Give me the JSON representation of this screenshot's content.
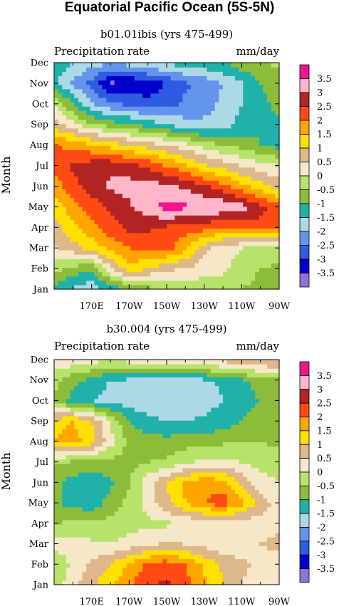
{
  "title": "Equatorial Pacific Ocean (5S-5N)",
  "contour_levels": [
    "3.5",
    "3",
    "2.5",
    "2",
    "1.5",
    "1",
    "0.5",
    "0",
    "-0.5",
    "-1",
    "-1.5",
    "-2",
    "-2.5",
    "-3",
    "-3.5"
  ],
  "colors": {
    "3.5": "#f2138f",
    "3": "#ffb6c9",
    "2.5": "#b22424",
    "2": "#ff4a14",
    "1.5": "#ffa500",
    "1": "#ffe000",
    "0.5": "#dcb88a",
    "0": "#f5e8c9",
    "-0.5": "#b8e36a",
    "-1": "#8cbd3a",
    "-1.5": "#20b2aa",
    "-2": "#add8e6",
    "-2.5": "#6495ed",
    "-3": "#2e5ce0",
    "-3.5": "#0000cd",
    "below": "#9370db"
  },
  "chart_data": [
    {
      "type": "heatmap",
      "subtitle": "b01.01ibis (yrs 475-499)",
      "left_string": "Precipitation rate",
      "right_string": "mm/day",
      "ylabel": "Month",
      "x_ticks": [
        "170E",
        "170W",
        "150W",
        "130W",
        "110W",
        "90W"
      ],
      "y_ticks": [
        "Jan",
        "Feb",
        "Mar",
        "Apr",
        "May",
        "Jun",
        "Jul",
        "Aug",
        "Sep",
        "Oct",
        "Nov",
        "Dec"
      ],
      "x_range": [
        "150E",
        "90W"
      ],
      "y_range": [
        "Jan",
        "Dec"
      ],
      "columns": [
        "150E",
        "160E",
        "170E",
        "180",
        "170W",
        "160W",
        "150W",
        "140W",
        "130W",
        "120W",
        "110W",
        "100W",
        "90W"
      ],
      "values": [
        [
          -1.2,
          -1.6,
          -1.8,
          -1.4,
          -1.0,
          -0.7,
          -0.5,
          -0.4,
          -0.3,
          -0.3,
          -0.5,
          -0.7,
          -0.9
        ],
        [
          -0.3,
          -0.7,
          -1.0,
          0.4,
          1.3,
          1.0,
          0.6,
          0.5,
          0.2,
          0.1,
          -0.2,
          -0.5,
          -0.6
        ],
        [
          0.4,
          0.8,
          1.2,
          1.6,
          2.0,
          2.2,
          2.2,
          1.6,
          0.7,
          0.2,
          0.0,
          -0.2,
          -0.3
        ],
        [
          0.8,
          1.3,
          1.8,
          2.3,
          2.6,
          2.6,
          2.4,
          2.3,
          2.2,
          2.0,
          2.2,
          2.3,
          2.0
        ],
        [
          1.2,
          1.8,
          2.2,
          2.6,
          2.9,
          3.3,
          3.7,
          3.6,
          3.5,
          3.4,
          3.2,
          2.7,
          2.2
        ],
        [
          1.7,
          2.3,
          2.8,
          3.1,
          3.2,
          3.3,
          3.1,
          2.9,
          2.6,
          2.2,
          1.7,
          1.2,
          0.8
        ],
        [
          2.2,
          2.6,
          2.8,
          2.9,
          2.7,
          2.4,
          2.0,
          1.6,
          1.1,
          0.8,
          0.5,
          0.2,
          0.0
        ],
        [
          2.1,
          1.8,
          1.6,
          1.3,
          1.0,
          0.8,
          0.5,
          0.2,
          -0.2,
          -0.5,
          -0.7,
          -1.0,
          -1.2
        ],
        [
          0.8,
          0.2,
          -0.4,
          -0.7,
          -0.9,
          -1.2,
          -1.5,
          -1.8,
          -1.9,
          -1.7,
          -1.3,
          -1.0,
          -1.1
        ],
        [
          0.0,
          -1.0,
          -1.9,
          -2.4,
          -2.6,
          -2.8,
          -2.7,
          -2.4,
          -2.2,
          -1.9,
          -1.5,
          -1.1,
          -0.9
        ],
        [
          -1.4,
          -2.1,
          -2.7,
          -3.6,
          -3.5,
          -3.3,
          -3.0,
          -2.6,
          -2.3,
          -2.0,
          -1.6,
          -1.0,
          -0.8
        ],
        [
          -1.2,
          -1.5,
          -1.8,
          -1.9,
          -1.8,
          -1.6,
          -1.4,
          -1.3,
          -1.2,
          -1.0,
          -0.7,
          -0.5,
          -0.4
        ]
      ]
    },
    {
      "type": "heatmap",
      "subtitle": "b30.004 (yrs 475-499)",
      "left_string": "Precipitation rate",
      "right_string": "mm/day",
      "ylabel": "Month",
      "x_ticks": [
        "170E",
        "170W",
        "150W",
        "130W",
        "110W",
        "90W"
      ],
      "y_ticks": [
        "Jan",
        "Feb",
        "Mar",
        "Apr",
        "May",
        "Jun",
        "Jul",
        "Aug",
        "Sep",
        "Oct",
        "Nov",
        "Dec"
      ],
      "x_range": [
        "150E",
        "90W"
      ],
      "y_range": [
        "Jan",
        "Dec"
      ],
      "columns": [
        "150E",
        "160E",
        "170E",
        "180",
        "170W",
        "160W",
        "150W",
        "140W",
        "130W",
        "120W",
        "110W",
        "100W",
        "90W"
      ],
      "values": [
        [
          -0.3,
          0.3,
          0.9,
          1.4,
          1.9,
          2.4,
          2.6,
          2.2,
          1.6,
          1.0,
          0.5,
          0.2,
          0.1
        ],
        [
          -0.4,
          0.1,
          0.6,
          1.0,
          1.6,
          2.1,
          2.3,
          2.0,
          1.4,
          0.9,
          0.6,
          0.4,
          0.3
        ],
        [
          0.2,
          0.2,
          0.1,
          0.0,
          0.2,
          0.4,
          0.6,
          0.5,
          0.3,
          0.1,
          0.2,
          0.5,
          0.6
        ],
        [
          -0.5,
          -0.4,
          -0.4,
          -0.3,
          -0.2,
          -0.1,
          -0.1,
          0.0,
          0.1,
          0.1,
          0.2,
          0.3,
          0.4
        ],
        [
          -0.9,
          -1.2,
          -1.3,
          -0.8,
          -0.3,
          0.2,
          0.9,
          1.5,
          2.0,
          2.3,
          1.6,
          0.8,
          0.2
        ],
        [
          -0.9,
          -1.2,
          -1.3,
          -1.1,
          -0.6,
          0.3,
          1.0,
          1.6,
          1.9,
          1.7,
          0.8,
          0.2,
          0.0
        ],
        [
          -0.4,
          -0.6,
          -0.7,
          -0.7,
          -0.6,
          -0.5,
          -0.4,
          -0.1,
          0.1,
          0.2,
          0.0,
          -0.2,
          -0.3
        ],
        [
          1.5,
          1.8,
          1.2,
          0.2,
          -0.7,
          -0.8,
          -0.8,
          -0.7,
          -0.7,
          -0.6,
          -0.5,
          -0.5,
          -0.6
        ],
        [
          1.2,
          1.5,
          1.0,
          0.0,
          -1.0,
          -1.3,
          -1.5,
          -1.5,
          -1.4,
          -1.3,
          -1.0,
          -0.8,
          -0.8
        ],
        [
          -0.6,
          -1.2,
          -1.5,
          -1.7,
          -1.8,
          -1.9,
          -2.0,
          -1.9,
          -1.7,
          -1.5,
          -1.2,
          -1.0,
          -0.9
        ],
        [
          -0.3,
          -0.8,
          -1.2,
          -1.5,
          -1.6,
          -1.8,
          -1.9,
          -1.8,
          -1.6,
          -1.4,
          -1.1,
          -0.8,
          -0.6
        ],
        [
          0.4,
          0.3,
          0.2,
          0.1,
          0.2,
          0.3,
          0.4,
          0.5,
          0.6,
          0.7,
          0.8,
          1.0,
          1.2
        ]
      ]
    }
  ]
}
